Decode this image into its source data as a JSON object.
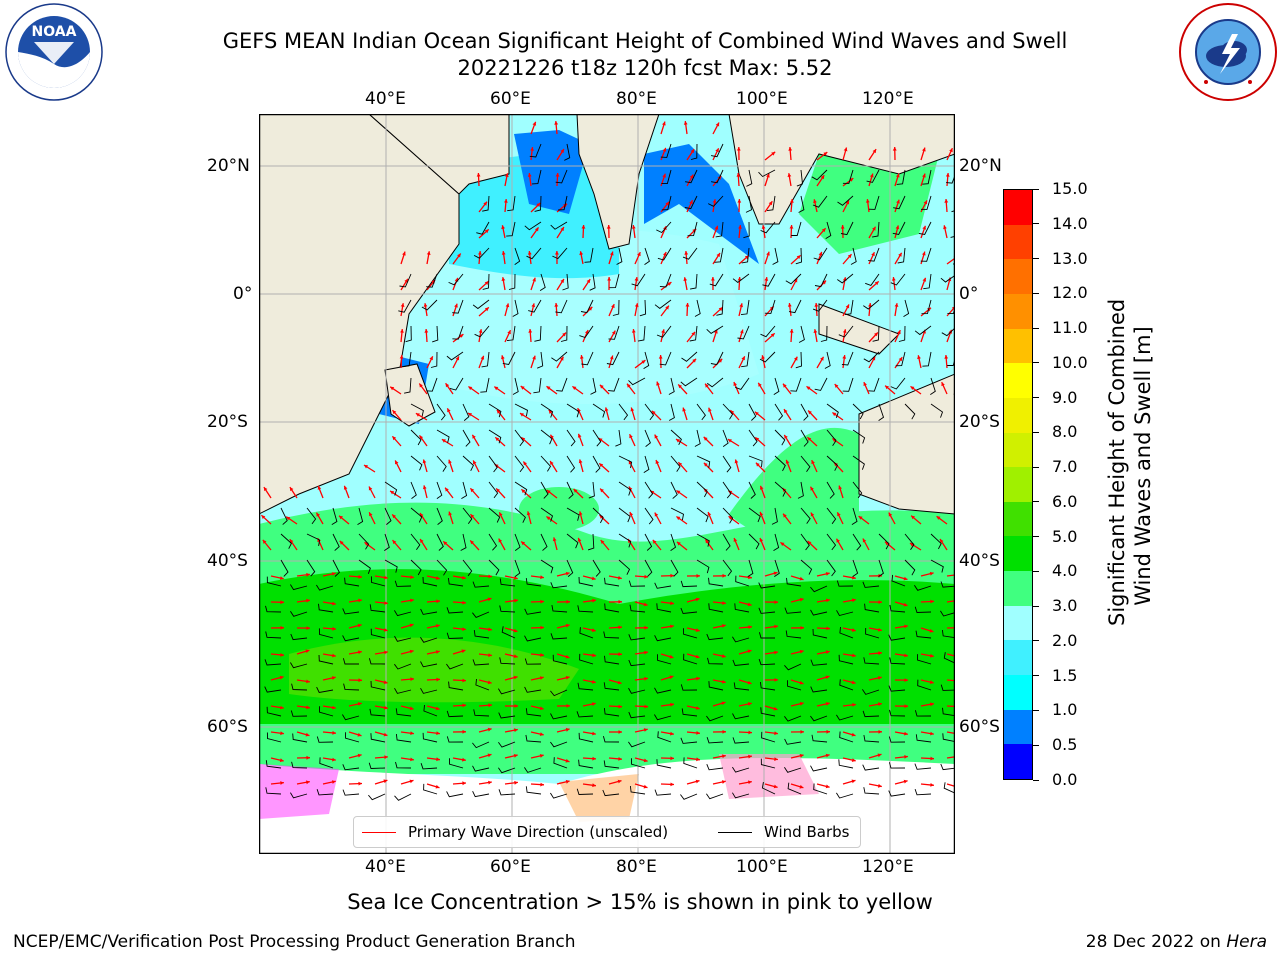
{
  "title": {
    "line1": "GEFS MEAN Indian Ocean Significant Height of Combined Wind Waves and Swell",
    "line2": "20221226 t18z 120h fcst   Max: 5.52"
  },
  "logos": {
    "noaa_text": "NOAA",
    "noaa_ring": "NATIONAL OCEANIC AND ATMOSPHERIC ADMINISTRATION · U.S. DEPARTMENT OF COMMERCE",
    "nws_ring": "NATIONAL WEATHER SERVICE"
  },
  "map": {
    "lon_ticks": [
      "40°E",
      "60°E",
      "80°E",
      "100°E",
      "120°E"
    ],
    "lat_ticks": [
      "20°N",
      "0°",
      "20°S",
      "40°S",
      "60°S"
    ],
    "lon_range": [
      20,
      130
    ],
    "lat_range": [
      -72,
      27
    ],
    "land_color": "#efecdc",
    "ice_colors": [
      "#ff40ff",
      "#ffa0d0",
      "#ffc080"
    ]
  },
  "colorbar": {
    "title_line1": "Significant Height of Combined",
    "title_line2": "Wind Waves and Swell [m]",
    "levels": [
      "0.0",
      "0.5",
      "1.0",
      "1.5",
      "2.0",
      "3.0",
      "4.0",
      "5.0",
      "6.0",
      "7.0",
      "8.0",
      "9.0",
      "10.0",
      "11.0",
      "12.0",
      "13.0",
      "14.0",
      "15.0"
    ],
    "colors": [
      "#0000ff",
      "#0080ff",
      "#00ffff",
      "#40f0ff",
      "#a0ffff",
      "#40ff80",
      "#00e000",
      "#40e000",
      "#a0f000",
      "#d0f000",
      "#f0f000",
      "#ffff00",
      "#ffc000",
      "#ff9000",
      "#ff7000",
      "#ff4000",
      "#ff0000"
    ]
  },
  "legend": {
    "wave_dir": "Primary Wave Direction (unscaled)",
    "wind_barbs": "Wind Barbs",
    "wave_color": "#ff0000",
    "barb_color": "#000000"
  },
  "subtitle": "Sea Ice Concentration > 15% is shown in pink to yellow",
  "footer": {
    "left": "NCEP/EMC/Verification Post Processing Product Generation Branch",
    "right_prefix": "28 Dec 2022 on ",
    "right_host": "Hera"
  }
}
